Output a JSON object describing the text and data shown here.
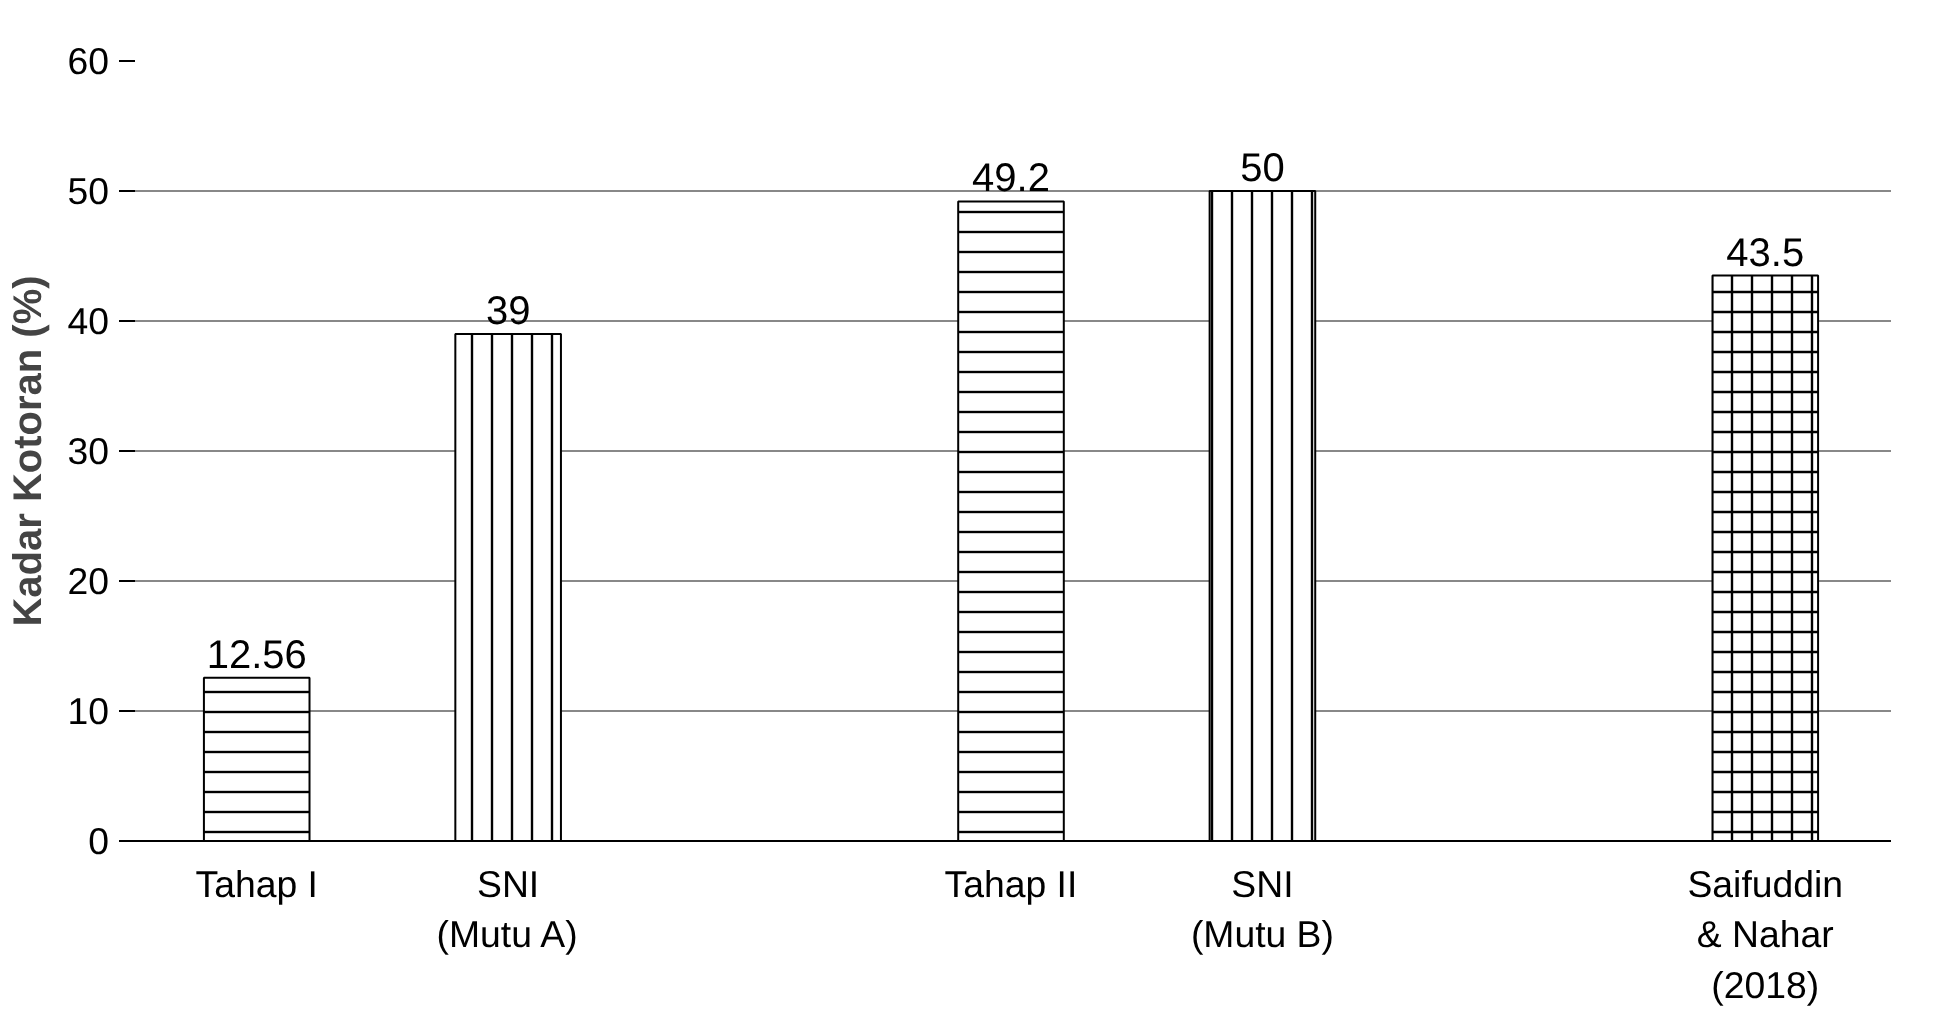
{
  "chart_data": {
    "type": "bar",
    "ylabel": "Kadar Kotoran (%)",
    "categories": [
      "Tahap I",
      "SNI\n(Mutu A)",
      null,
      "Tahap II",
      "SNI\n(Mutu B)",
      null,
      "Saifuddin\n& Nahar\n(2018)"
    ],
    "series": [
      {
        "color": "#000000",
        "values": [
          12.56,
          null,
          null,
          49.2,
          null,
          null,
          null
        ]
      },
      {
        "color": "#000000",
        "values": [
          null,
          39,
          null,
          null,
          50,
          null,
          null
        ]
      },
      {
        "color": "#000000",
        "values": [
          null,
          null,
          null,
          null,
          null,
          null,
          43.5
        ]
      }
    ],
    "ylim": [
      0,
      60
    ],
    "yticks": [
      0,
      10,
      20,
      30,
      40,
      50,
      60
    ],
    "grid": "y",
    "data_labels": true
  }
}
